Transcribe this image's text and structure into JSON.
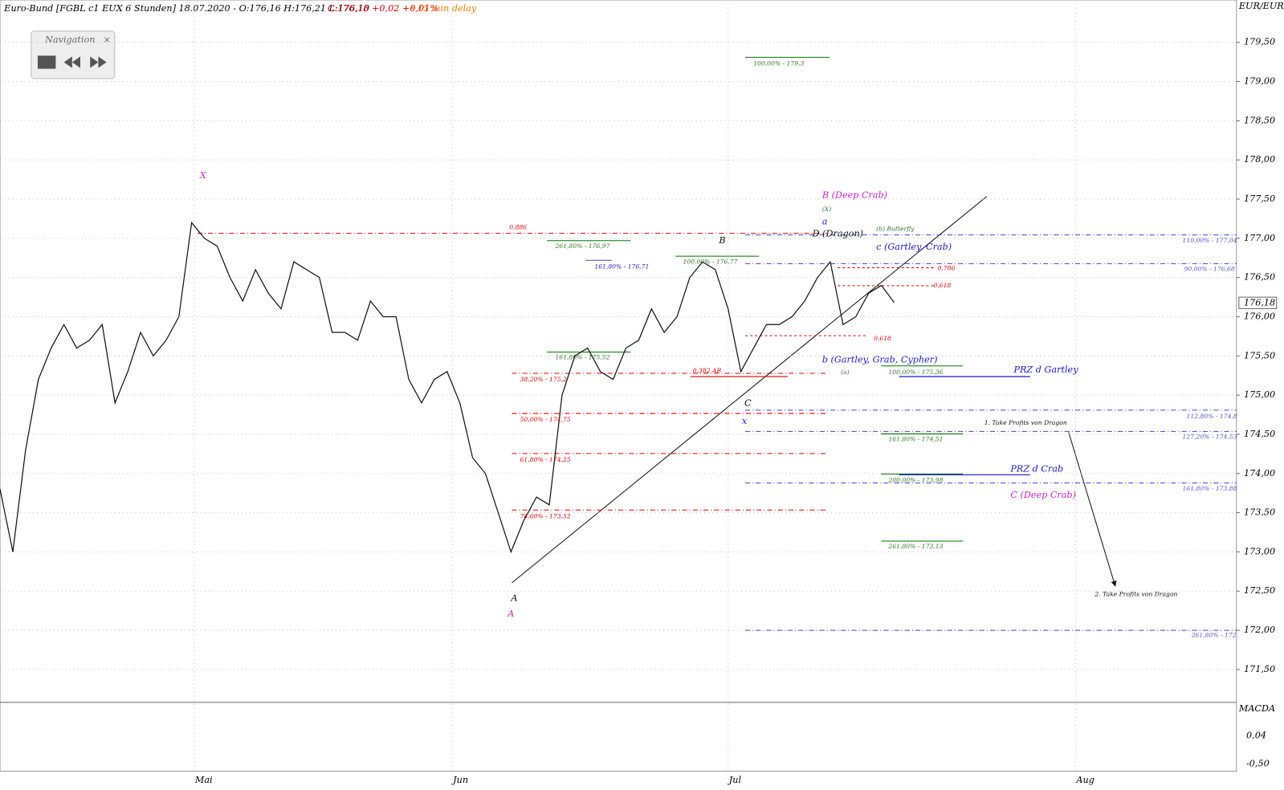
{
  "chart_data": {
    "type": "line",
    "title": "Euro-Bund [FGBL c1 EUX 6 Stunden] 18.07.2020 - O:176,16 H:176,21 L:176,10",
    "subtitle": "C:176,18 +0,02 +0,01%",
    "delay": "• 15 min delay",
    "unit": "EUR/EUR",
    "last_price": "176,18",
    "navigation": "Navigation",
    "series": [
      {
        "color": "#111111",
        "values": [
          173.8,
          173.0,
          174.3,
          175.2,
          175.6,
          175.9,
          175.6,
          175.7,
          175.9,
          174.9,
          175.3,
          175.8,
          175.5,
          175.7,
          176.0,
          177.2,
          177.0,
          176.9,
          176.5,
          176.2,
          176.6,
          176.3,
          176.1,
          176.7,
          176.6,
          176.5,
          175.8,
          175.8,
          175.7,
          176.2,
          176.0,
          176.0,
          175.2,
          174.9,
          175.2,
          175.3,
          174.9,
          174.2,
          174.0,
          173.5,
          173.0,
          173.4,
          173.7,
          173.6,
          175.0,
          175.5,
          175.6,
          175.3,
          175.2,
          175.6,
          175.7,
          176.1,
          175.8,
          176.0,
          176.5,
          176.7,
          176.6,
          176.1,
          175.3,
          175.6,
          175.9,
          175.9,
          176.0,
          176.2,
          176.5,
          176.7,
          175.9,
          176.0,
          176.3,
          176.4,
          176.18
        ]
      }
    ],
    "xlim": [
      0,
      96.8
    ],
    "xticks": [
      {
        "value": 15.2,
        "label": "Mai"
      },
      {
        "value": 35.4,
        "label": "Jun"
      },
      {
        "value": 57,
        "label": "Jul"
      },
      {
        "value": 84.2,
        "label": "Aug"
      }
    ],
    "ylim": [
      171.08,
      180.04
    ],
    "yticks": [
      {
        "value": 171.5,
        "label": "171,50"
      },
      {
        "value": 172,
        "label": "172,00"
      },
      {
        "value": 172.5,
        "label": "172,50"
      },
      {
        "value": 173,
        "label": "173,00"
      },
      {
        "value": 173.5,
        "label": "173,50"
      },
      {
        "value": 174,
        "label": "174,00"
      },
      {
        "value": 174.5,
        "label": "174,50"
      },
      {
        "value": 175,
        "label": "175,00"
      },
      {
        "value": 175.5,
        "label": "175,50"
      },
      {
        "value": 176,
        "label": "176,00"
      },
      {
        "value": 176.5,
        "label": "176,50"
      },
      {
        "value": 177,
        "label": "177,00"
      },
      {
        "value": 177.5,
        "label": "177,50"
      },
      {
        "value": 178,
        "label": "178,00"
      },
      {
        "value": 178.5,
        "label": "178,50"
      },
      {
        "value": 179,
        "label": "179,00"
      },
      {
        "value": 179.5,
        "label": "179,50"
      }
    ],
    "grid": true,
    "macd": {
      "name": "MACDA",
      "ticks": [
        "0,04",
        "-0,50"
      ]
    },
    "annotations": [
      "X",
      "0,886",
      "261,80% - 176,97",
      "161,80% - 176,71",
      "100,00% - 179,3",
      "B",
      "100,00% - 176,77",
      "B (Deep Crab)",
      "(X)",
      "a",
      "D (Dragon)",
      "(b) Butterfly",
      "c (Gartley, Crab)",
      "0,786",
      "0,618",
      "0,618",
      "161,80% - 175,52",
      "0,382 AB",
      "38,20% - 175,2",
      "50,00% - 174,75",
      "61,80% - 174,25",
      "78,60% - 173,52",
      "b (Gartley, Grab, Cypher)",
      "(a)",
      "100,00% - 175,36",
      "PRZ d Gartley",
      "C",
      "x",
      "1. Take Profits von Dragon",
      "161,80% - 174,51",
      "PRZ d Crab",
      "200,00% - 173,98",
      "C (Deep Crab)",
      "261,80% - 173,13",
      "A",
      "A",
      "2. Take Profits von Dragon",
      "110,00% - 177,04",
      "90,00% - 176,68",
      "112,80% - 174,8",
      "127,20% - 174,53",
      "161,80% - 173,88",
      "261,80% - 172"
    ]
  }
}
